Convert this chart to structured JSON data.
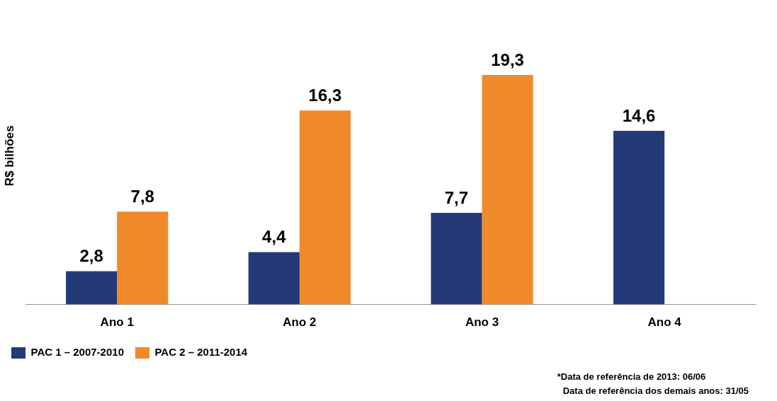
{
  "chart_data": {
    "type": "bar",
    "ylabel": "R$ bilhões",
    "categories": [
      "Ano 1",
      "Ano 2",
      "Ano 3",
      "Ano 4"
    ],
    "series": [
      {
        "name": "PAC 1 – 2007-2010",
        "color": "#243a78",
        "values": [
          2.8,
          4.4,
          7.7,
          14.6
        ],
        "value_labels": [
          "2,8",
          "4,4",
          "7,7",
          "14,6"
        ]
      },
      {
        "name": "PAC 2 – 2011-2014",
        "color": "#f0892a",
        "values": [
          7.8,
          16.3,
          19.3,
          null
        ],
        "value_labels": [
          "7,8",
          "16,3",
          "19,3",
          null
        ]
      }
    ],
    "legend": "bottom left",
    "grid": false,
    "annotations": [
      "*Data de referência de 2013: 06/06",
      "Data de referência dos demais anos: 31/05"
    ]
  }
}
